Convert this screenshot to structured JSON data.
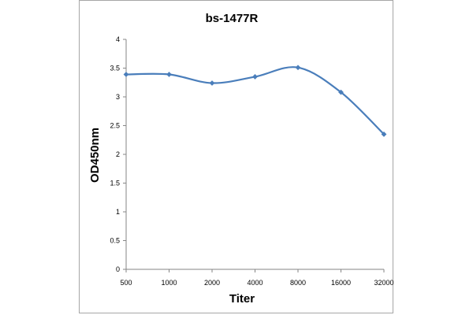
{
  "chart_data": {
    "type": "line",
    "title": "bs-1477R",
    "xlabel": "Titer",
    "ylabel": "OD450nm",
    "categories": [
      "500",
      "1000",
      "2000",
      "4000",
      "8000",
      "16000",
      "32000"
    ],
    "series": [
      {
        "values": [
          3.39,
          3.39,
          3.24,
          3.35,
          3.51,
          3.08,
          2.35
        ]
      }
    ],
    "ylim": [
      0,
      4
    ],
    "yticks": [
      "0",
      "0.5",
      "1",
      "1.5",
      "2",
      "2.5",
      "3",
      "3.5",
      "4"
    ],
    "grid": false,
    "legend": "none",
    "colors": {
      "line": "#4a7ebb",
      "axis": "#868686",
      "frame": "#a6a6a6"
    }
  }
}
